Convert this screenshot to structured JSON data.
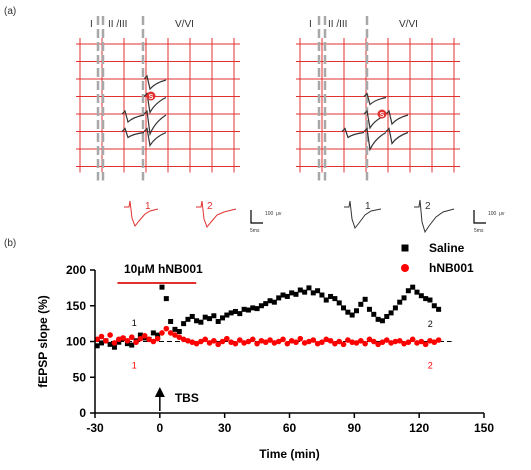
{
  "panel_a": {
    "label": "(a)",
    "layer_labels": [
      "I",
      "II /III",
      "V/VI"
    ],
    "electrode_marker": "S",
    "trace_labels": [
      "1",
      "2"
    ],
    "scale_value": "100",
    "scale_unit": "μv",
    "scale_time": "5ms",
    "colors": {
      "hNB001": "#e03030",
      "Saline": "#333333",
      "divider": "#a8a8a8"
    }
  },
  "chart_data": {
    "type": "scatter",
    "panel_label": "(b)",
    "xlabel": "Time (min)",
    "ylabel": "fEPSP slope (%)",
    "xlim": [
      -30,
      150
    ],
    "ylim": [
      0,
      200
    ],
    "xticks": [
      -30,
      0,
      30,
      60,
      90,
      120,
      150
    ],
    "yticks": [
      0,
      50,
      100,
      150,
      200
    ],
    "grid": false,
    "legend_placement": "top-right",
    "treatment_label": "10μM hNB001",
    "treatment_range": [
      -15,
      15
    ],
    "stimulus_label": "TBS",
    "stimulus_time": 0,
    "baseline": 100,
    "point_labels": [
      {
        "text": "1",
        "x": -13,
        "y": 122,
        "series": "Saline"
      },
      {
        "text": "2",
        "x": 124,
        "y": 120,
        "series": "Saline"
      },
      {
        "text": "1",
        "x": -13,
        "y": 62,
        "series": "hNB001"
      },
      {
        "text": "2",
        "x": 124,
        "y": 62,
        "series": "hNB001"
      }
    ],
    "series": [
      {
        "name": "Saline",
        "marker": "square",
        "color": "#000000",
        "x": [
          -29,
          -27,
          -25,
          -23,
          -21,
          -19,
          -17,
          -15,
          -13,
          -11,
          -9,
          -7,
          -5,
          -3,
          -1,
          1,
          3,
          5,
          7,
          9,
          11,
          13,
          15,
          17,
          19,
          21,
          23,
          25,
          27,
          29,
          31,
          33,
          35,
          37,
          39,
          41,
          43,
          45,
          47,
          49,
          51,
          53,
          55,
          57,
          59,
          61,
          63,
          65,
          67,
          69,
          71,
          73,
          75,
          77,
          79,
          81,
          83,
          85,
          87,
          89,
          91,
          93,
          95,
          97,
          99,
          101,
          103,
          105,
          107,
          109,
          111,
          113,
          115,
          117,
          119,
          121,
          123,
          125,
          127,
          129
        ],
        "y": [
          94,
          98,
          101,
          96,
          92,
          99,
          104,
          97,
          95,
          101,
          109,
          105,
          103,
          112,
          109,
          176,
          160,
          128,
          117,
          114,
          125,
          131,
          135,
          129,
          127,
          134,
          132,
          136,
          128,
          133,
          137,
          140,
          142,
          139,
          145,
          144,
          147,
          146,
          150,
          153,
          157,
          155,
          161,
          165,
          163,
          168,
          166,
          172,
          169,
          175,
          168,
          171,
          165,
          158,
          163,
          160,
          154,
          147,
          141,
          137,
          143,
          152,
          159,
          145,
          138,
          131,
          129,
          135,
          140,
          147,
          155,
          161,
          171,
          176,
          169,
          164,
          160,
          158,
          150,
          145
        ]
      },
      {
        "name": "hNB001",
        "marker": "circle",
        "color": "#ff0000",
        "x": [
          -29,
          -27,
          -25,
          -23,
          -21,
          -19,
          -17,
          -15,
          -13,
          -11,
          -9,
          -7,
          -5,
          -3,
          -1,
          1,
          3,
          5,
          7,
          9,
          11,
          13,
          15,
          17,
          19,
          21,
          23,
          25,
          27,
          29,
          31,
          33,
          35,
          37,
          39,
          41,
          43,
          45,
          47,
          49,
          51,
          53,
          55,
          57,
          59,
          61,
          63,
          65,
          67,
          69,
          71,
          73,
          75,
          77,
          79,
          81,
          83,
          85,
          87,
          89,
          91,
          93,
          95,
          97,
          99,
          101,
          103,
          105,
          107,
          109,
          111,
          113,
          115,
          117,
          119,
          121,
          123,
          125,
          127,
          129
        ],
        "y": [
          103,
          107,
          101,
          109,
          98,
          103,
          105,
          101,
          106,
          99,
          104,
          108,
          103,
          100,
          104,
          112,
          118,
          112,
          109,
          106,
          103,
          101,
          99,
          97,
          100,
          103,
          98,
          101,
          96,
          100,
          104,
          99,
          97,
          102,
          98,
          100,
          103,
          97,
          101,
          99,
          102,
          98,
          100,
          103,
          97,
          101,
          99,
          104,
          98,
          100,
          102,
          97,
          99,
          103,
          101,
          97,
          100,
          96,
          102,
          99,
          98,
          101,
          97,
          103,
          100,
          96,
          99,
          102,
          98,
          100,
          101,
          97,
          99,
          103,
          98,
          100,
          96,
          101,
          99,
          102
        ]
      }
    ]
  }
}
